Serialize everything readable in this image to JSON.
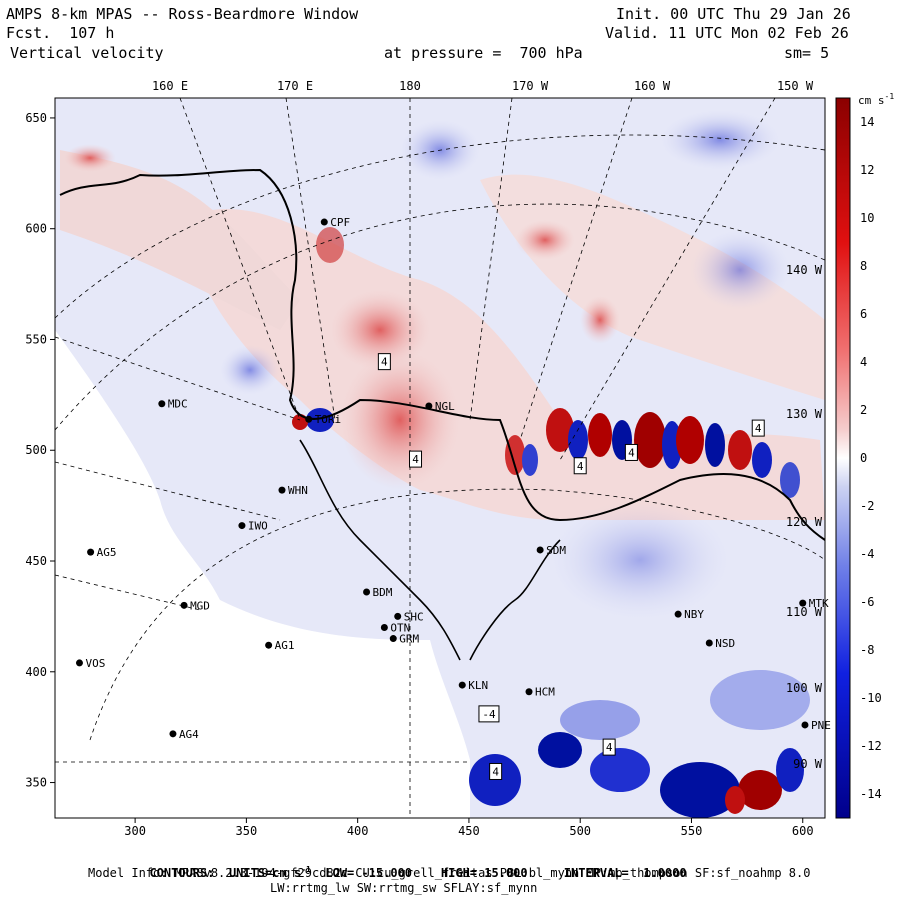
{
  "header": {
    "model_title": "AMPS 8-km MPAS -- Ross-Beardmore Window",
    "forecast_hour": "Fcst.  107 h",
    "variable": "Vertical velocity",
    "init_time": "Init. 00 UTC Thu 29 Jan 26",
    "valid_time": "Valid. 11 UTC Mon 02 Feb 26",
    "pressure_level": "at pressure =  700 hPa",
    "smoothing": "sm= 5"
  },
  "map": {
    "top_lon_labels": [
      "160 E",
      "170 E",
      "180",
      "170 W",
      "160 W",
      "150 W"
    ],
    "right_lat_labels": [
      "140 W",
      "130 W",
      "120 W",
      "110 W",
      "100 W",
      "90 W"
    ],
    "x_ticks": [
      300,
      350,
      400,
      450,
      500,
      550,
      600
    ],
    "y_ticks": [
      650,
      600,
      550,
      500,
      450,
      400,
      350
    ],
    "stations": [
      {
        "name": "MDC",
        "gx": 312,
        "gy": 521
      },
      {
        "name": "NGL",
        "gx": 432,
        "gy": 520
      },
      {
        "name": "WHN",
        "gx": 366,
        "gy": 482
      },
      {
        "name": "IWO",
        "gx": 348,
        "gy": 466
      },
      {
        "name": "AG5",
        "gx": 280,
        "gy": 454
      },
      {
        "name": "SDM",
        "gx": 482,
        "gy": 455
      },
      {
        "name": "BDM",
        "gx": 404,
        "gy": 436
      },
      {
        "name": "MGD",
        "gx": 322,
        "gy": 430
      },
      {
        "name": "SHC",
        "gx": 418,
        "gy": 425
      },
      {
        "name": "NBY",
        "gx": 544,
        "gy": 426
      },
      {
        "name": "OTN",
        "gx": 412,
        "gy": 420
      },
      {
        "name": "GRM",
        "gx": 416,
        "gy": 415
      },
      {
        "name": "AG1",
        "gx": 360,
        "gy": 412
      },
      {
        "name": "NSD",
        "gx": 558,
        "gy": 413
      },
      {
        "name": "VOS",
        "gx": 275,
        "gy": 404
      },
      {
        "name": "KLN",
        "gx": 447,
        "gy": 394
      },
      {
        "name": "HCM",
        "gx": 477,
        "gy": 391
      },
      {
        "name": "MTK",
        "gx": 600,
        "gy": 431
      },
      {
        "name": "AG4",
        "gx": 317,
        "gy": 372
      },
      {
        "name": "PNE",
        "gx": 601,
        "gy": 376
      },
      {
        "name": "CPF",
        "gx": 385,
        "gy": 603
      },
      {
        "name": "TORi",
        "gx": 378,
        "gy": 514
      }
    ],
    "extrema_labels": [
      {
        "text": "4",
        "gx": 412,
        "gy": 540
      },
      {
        "text": "4",
        "gx": 426,
        "gy": 496
      },
      {
        "text": "4",
        "gx": 500,
        "gy": 493
      },
      {
        "text": "4",
        "gx": 523,
        "gy": 499
      },
      {
        "text": "4",
        "gx": 580,
        "gy": 510
      },
      {
        "text": "-4",
        "gx": 459,
        "gy": 381
      },
      {
        "text": "4",
        "gx": 513,
        "gy": 366
      },
      {
        "text": "4",
        "gx": 462,
        "gy": 355
      }
    ]
  },
  "colorbar": {
    "units": "cm s",
    "units_exp": "-1",
    "labels": [
      14,
      12,
      10,
      8,
      6,
      4,
      2,
      0,
      -2,
      -4,
      -6,
      -8,
      -10,
      -12,
      -14
    ],
    "min": -15,
    "max": 15
  },
  "footer": {
    "contours_label": "CONTOURS:",
    "units_label": "UNITS=cm s",
    "units_exp": "-1",
    "low_label": "LOW=",
    "low_value": "-15.000",
    "high_label": "HIGH=",
    "high_value": "15.000",
    "interval_label": "INTERVAL=",
    "interval_value": "1.0000",
    "model_info_line1": "Model Info: MPASv8.2.3-194-gf29cd82c CU:cu_grell_freitas PBL:bl_mynn MP:mp_thompson SF:sf_noahmp 8.0",
    "model_info_line2": "LW:rrtmg_lw SW:rrtmg_sw SFLAY:sf_mynn"
  },
  "colors": {
    "pos_light": "#f2d6d6",
    "pos_strong": "#8b0000",
    "neg_light": "#d8dcf2",
    "neg_strong": "#00008b",
    "coast": "#000000"
  }
}
